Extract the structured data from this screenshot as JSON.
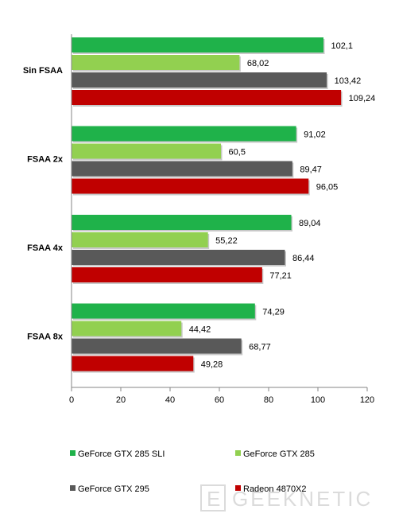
{
  "chart_data": {
    "type": "bar",
    "orientation": "horizontal",
    "categories": [
      "Sin FSAA",
      "FSAA 2x",
      "FSAA 4x",
      "FSAA 8x"
    ],
    "series": [
      {
        "name": "GeForce GTX 285 SLI",
        "color": "#1FB24A",
        "values": [
          102.1,
          91.02,
          89.04,
          74.29
        ],
        "labels": [
          "102,1",
          "91,02",
          "89,04",
          "74,29"
        ]
      },
      {
        "name": "GeForce GTX 285",
        "color": "#92D050",
        "values": [
          68.02,
          60.5,
          55.22,
          44.42
        ],
        "labels": [
          "68,02",
          "60,5",
          "55,22",
          "44,42"
        ]
      },
      {
        "name": "GeForce GTX 295",
        "color": "#595959",
        "values": [
          103.42,
          89.47,
          86.44,
          68.77
        ],
        "labels": [
          "103,42",
          "89,47",
          "86,44",
          "68,77"
        ]
      },
      {
        "name": "Radeon 4870X2",
        "color": "#C00000",
        "values": [
          109.24,
          96.05,
          77.21,
          49.28
        ],
        "labels": [
          "109,24",
          "96,05",
          "77,21",
          "49,28"
        ]
      }
    ],
    "xlim": [
      0,
      120
    ],
    "xticks": [
      "0",
      "20",
      "40",
      "60",
      "80",
      "100",
      "120"
    ],
    "grid": false,
    "legend_position": "bottom"
  },
  "watermark": {
    "text": "GEEKNETIC",
    "logo": "E"
  }
}
